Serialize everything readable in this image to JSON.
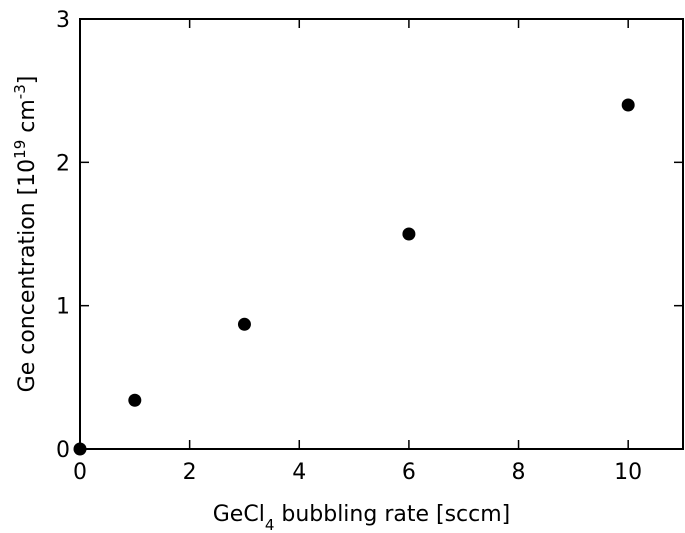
{
  "chart_data": {
    "type": "scatter",
    "xlabel": [
      "GeCl",
      "4",
      " bubbling rate [sccm]"
    ],
    "ylabel": [
      "Ge concentration [10",
      "19",
      " cm",
      "-3",
      "]"
    ],
    "x": [
      0,
      1,
      3,
      6,
      10
    ],
    "values": [
      0,
      0.34,
      0.87,
      1.5,
      2.4
    ],
    "color": "#000000",
    "xlim": [
      0,
      11
    ],
    "xticks": [
      0,
      2,
      4,
      6,
      8,
      10
    ],
    "ylim": [
      0,
      3
    ],
    "yticks": [
      0,
      1,
      2,
      3
    ]
  }
}
